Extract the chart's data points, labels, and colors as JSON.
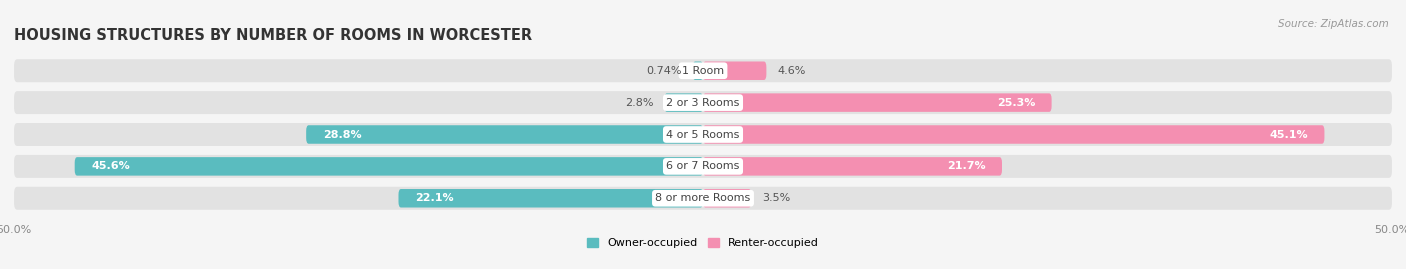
{
  "title": "HOUSING STRUCTURES BY NUMBER OF ROOMS IN WORCESTER",
  "source": "Source: ZipAtlas.com",
  "categories": [
    "1 Room",
    "2 or 3 Rooms",
    "4 or 5 Rooms",
    "6 or 7 Rooms",
    "8 or more Rooms"
  ],
  "owner_values": [
    0.74,
    2.8,
    28.8,
    45.6,
    22.1
  ],
  "renter_values": [
    4.6,
    25.3,
    45.1,
    21.7,
    3.5
  ],
  "owner_color": "#5abcbf",
  "renter_color": "#f48fb1",
  "background_color": "#f5f5f5",
  "bar_bg_color": "#e2e2e2",
  "axis_max": 50.0,
  "legend_owner": "Owner-occupied",
  "legend_renter": "Renter-occupied",
  "title_fontsize": 10.5,
  "label_fontsize": 8.0,
  "bar_height": 0.58,
  "inside_threshold": 10.0
}
